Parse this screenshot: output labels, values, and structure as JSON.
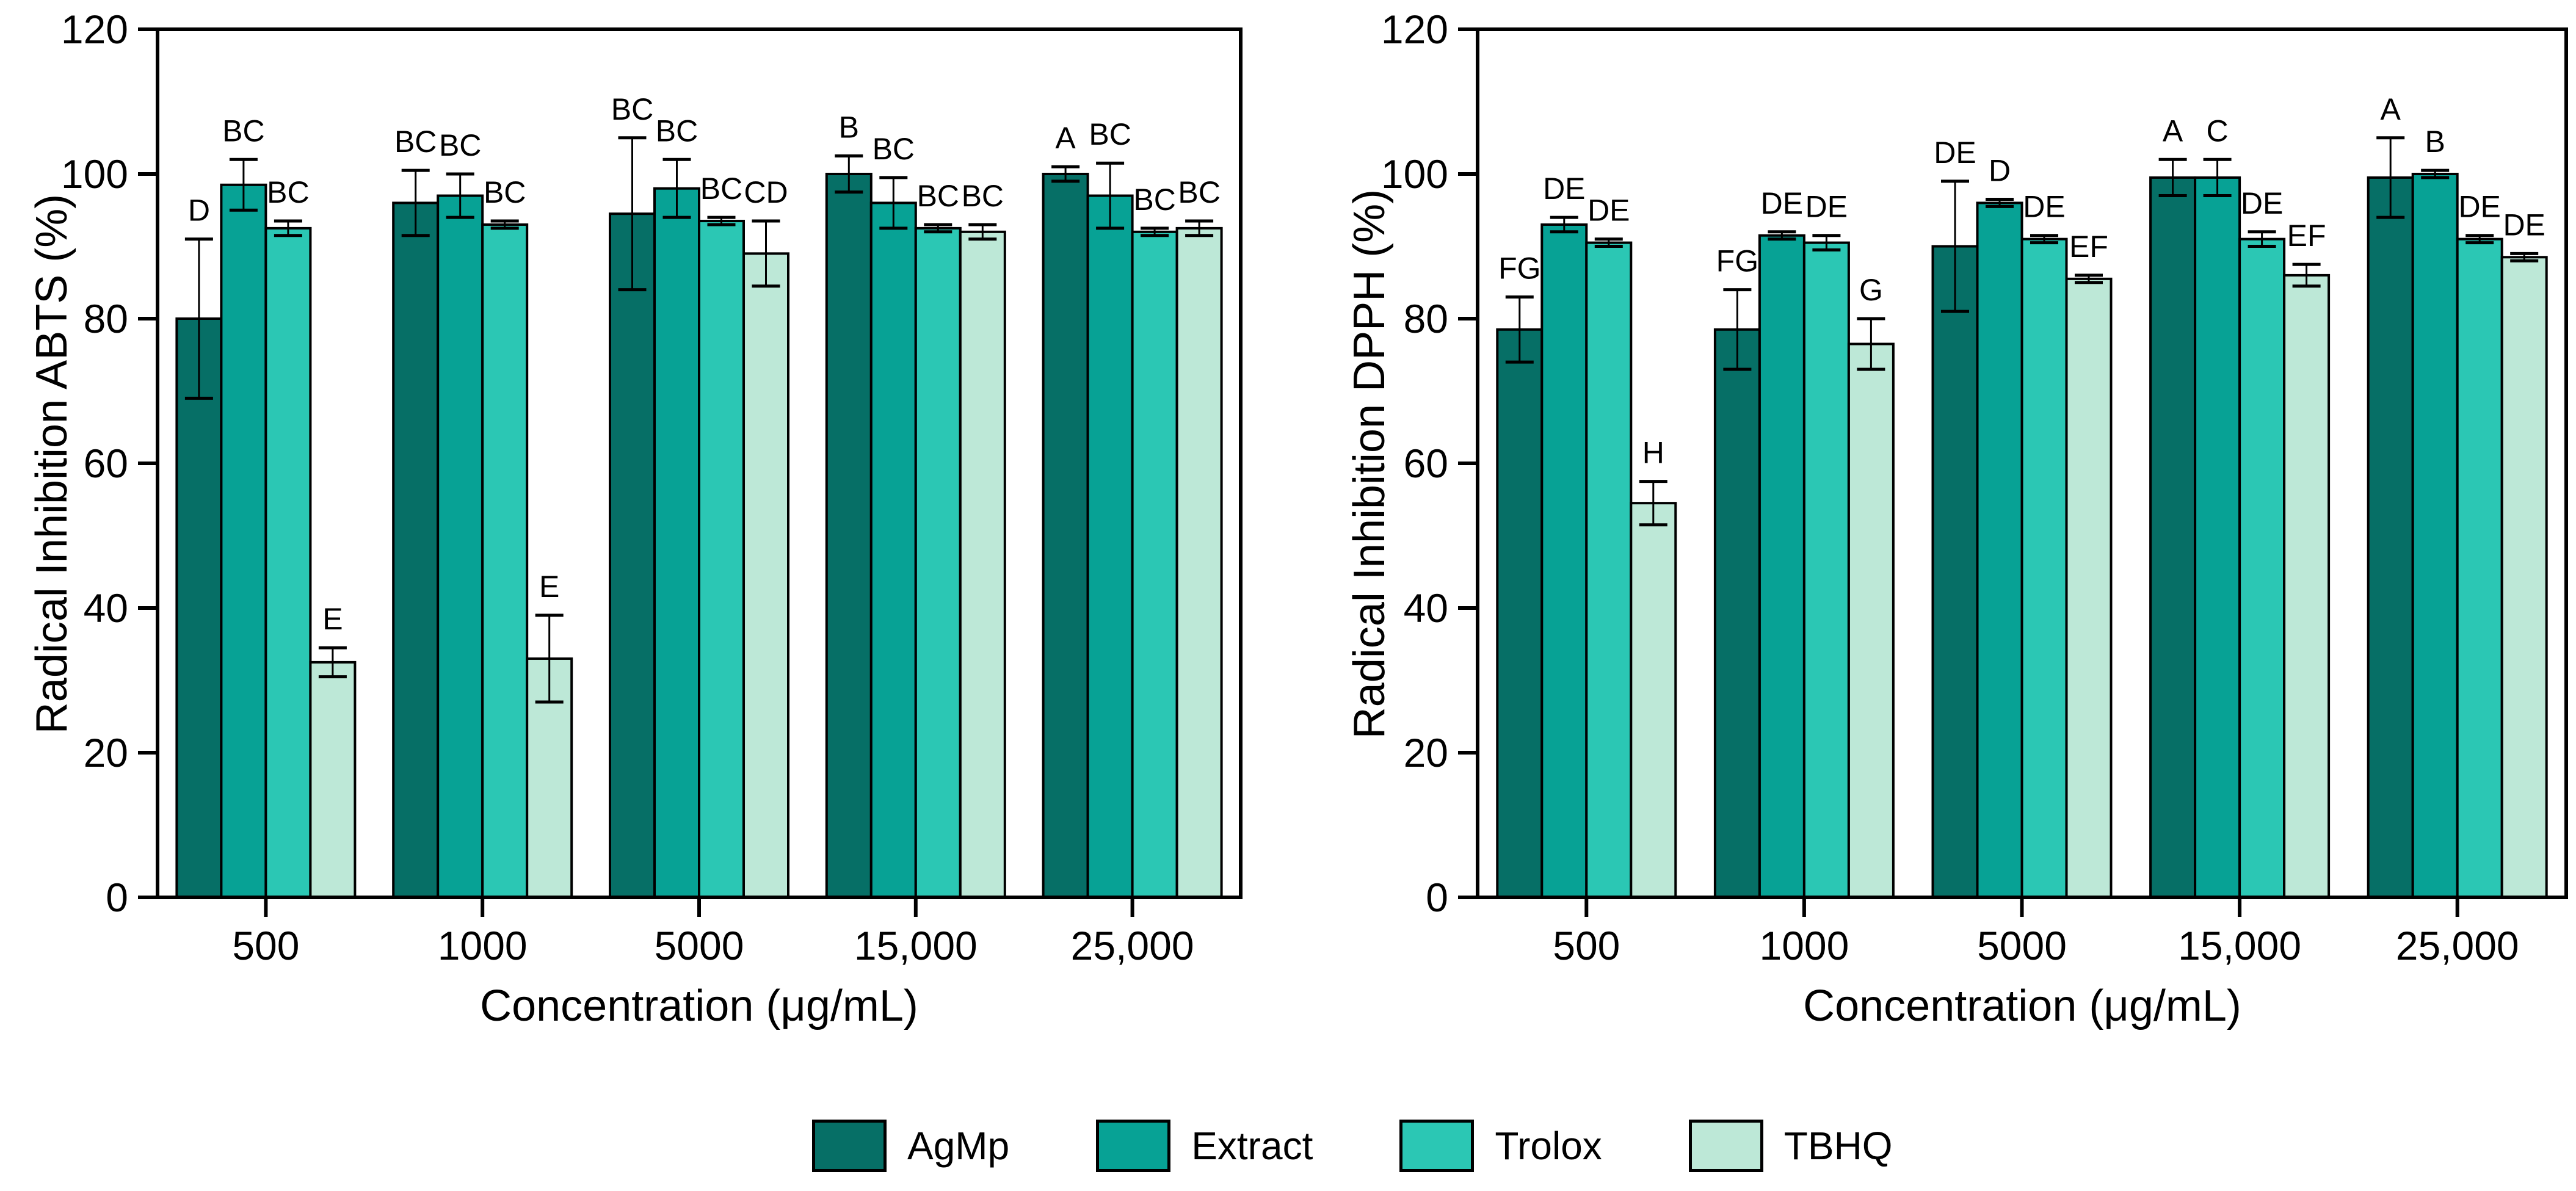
{
  "figure": {
    "background": "#ffffff",
    "text_color": "#000000"
  },
  "legend": {
    "position": "bottom",
    "items": [
      {
        "label": "AgMp",
        "color": "#066f66"
      },
      {
        "label": "Extract",
        "color": "#07a295"
      },
      {
        "label": "Trolox",
        "color": "#2bc7b4"
      },
      {
        "label": "TBHQ",
        "color": "#bde8d7"
      }
    ]
  },
  "chart_data": [
    {
      "type": "bar",
      "panel": "left",
      "xlabel": "Concentration (μg/mL)",
      "ylabel": "Radical Inhibition ABTS (%)",
      "categories": [
        "500",
        "1000",
        "5000",
        "15,000",
        "25,000"
      ],
      "ylim": [
        0,
        120
      ],
      "yticks": [
        0,
        20,
        40,
        60,
        80,
        100,
        120
      ],
      "grid": false,
      "error_bars": true,
      "series": [
        {
          "name": "AgMp",
          "color": "#066f66",
          "values": [
            80,
            96,
            94.5,
            100,
            100
          ],
          "errors": [
            11,
            4.5,
            10.5,
            2.5,
            1
          ],
          "letters": [
            "D",
            "BC",
            "BC",
            "B",
            "A"
          ]
        },
        {
          "name": "Extract",
          "color": "#07a295",
          "values": [
            98.5,
            97,
            98,
            96,
            97
          ],
          "errors": [
            3.5,
            3,
            4,
            3.5,
            4.5
          ],
          "letters": [
            "BC",
            "BC",
            "BC",
            "BC",
            "BC"
          ]
        },
        {
          "name": "Trolox",
          "color": "#2bc7b4",
          "values": [
            92.5,
            93,
            93.5,
            92.5,
            92
          ],
          "errors": [
            1,
            0.5,
            0.5,
            0.5,
            0.5
          ],
          "letters": [
            "BC",
            "BC",
            "BC",
            "BC",
            "BC"
          ]
        },
        {
          "name": "TBHQ",
          "color": "#bde8d7",
          "values": [
            32.5,
            33,
            89,
            92,
            92.5
          ],
          "errors": [
            2,
            6,
            4.5,
            1,
            1
          ],
          "letters": [
            "E",
            "E",
            "CD",
            "BC",
            "BC"
          ]
        }
      ]
    },
    {
      "type": "bar",
      "panel": "right",
      "xlabel": "Concentration (μg/mL)",
      "ylabel": "Radical Inhibition DPPH (%)",
      "categories": [
        "500",
        "1000",
        "5000",
        "15,000",
        "25,000"
      ],
      "ylim": [
        0,
        120
      ],
      "yticks": [
        0,
        20,
        40,
        60,
        80,
        100,
        120
      ],
      "grid": false,
      "error_bars": true,
      "series": [
        {
          "name": "AgMp",
          "color": "#066f66",
          "values": [
            78.5,
            78.5,
            90,
            99.5,
            99.5
          ],
          "errors": [
            4.5,
            5.5,
            9,
            2.5,
            5.5
          ],
          "letters": [
            "FG",
            "FG",
            "DE",
            "A",
            "A"
          ]
        },
        {
          "name": "Extract",
          "color": "#07a295",
          "values": [
            93,
            91.5,
            96,
            99.5,
            100
          ],
          "errors": [
            1,
            0.5,
            0.5,
            2.5,
            0.5
          ],
          "letters": [
            "DE",
            "DE",
            "D",
            "C",
            "B"
          ]
        },
        {
          "name": "Trolox",
          "color": "#2bc7b4",
          "values": [
            90.5,
            90.5,
            91,
            91,
            91
          ],
          "errors": [
            0.5,
            1,
            0.5,
            1,
            0.5
          ],
          "letters": [
            "DE",
            "DE",
            "DE",
            "DE",
            "DE"
          ]
        },
        {
          "name": "TBHQ",
          "color": "#bde8d7",
          "values": [
            54.5,
            76.5,
            85.5,
            86,
            88.5
          ],
          "errors": [
            3,
            3.5,
            0.5,
            1.5,
            0.5
          ],
          "letters": [
            "H",
            "G",
            "EF",
            "EF",
            "DE"
          ]
        }
      ]
    }
  ]
}
